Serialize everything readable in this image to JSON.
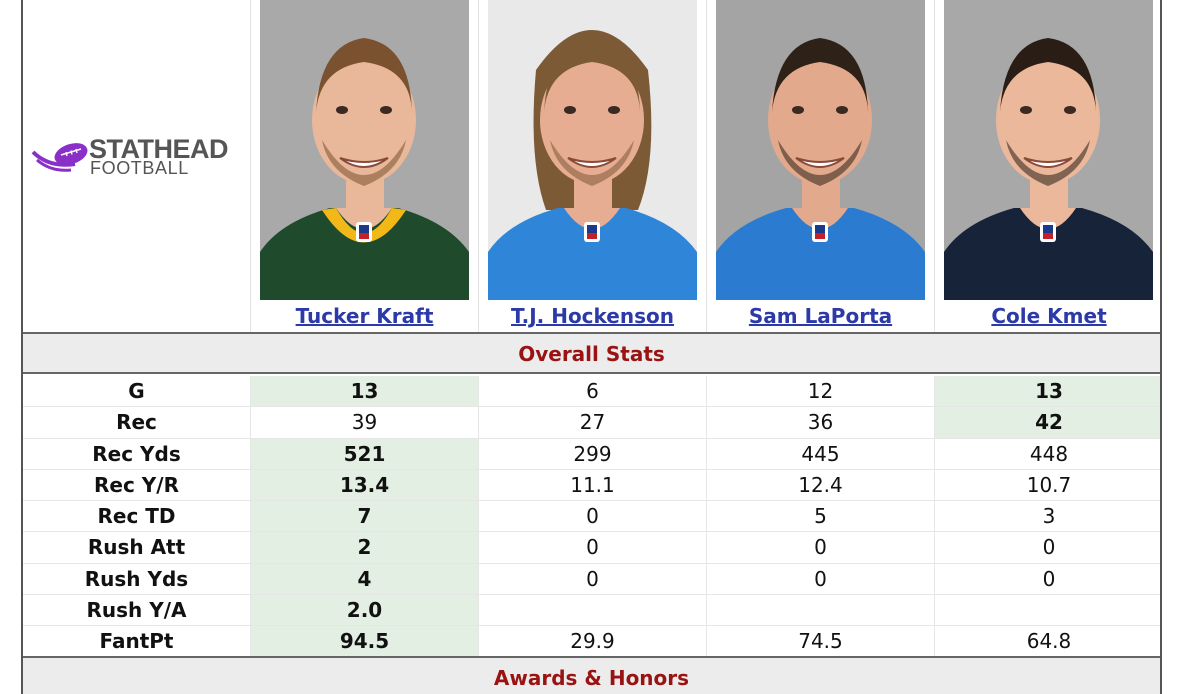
{
  "logo": {
    "line1": "STATHEAD",
    "line2": "FOOTBALL",
    "accent": "#8a2fc8"
  },
  "players": [
    {
      "name": "Tucker Kraft",
      "jersey": "green",
      "jersey_color": "#1f4a2c",
      "trim_color": "#f2b817",
      "hair": "#7a5230",
      "skin": "#e9b79a",
      "bg": "#a9a9a9"
    },
    {
      "name": "T.J. Hockenson",
      "jersey": "blue",
      "jersey_color": "#2f86d8",
      "trim_color": "#2f86d8",
      "hair": "#7d5a36",
      "skin": "#e6ad92",
      "bg": "#e9e9e9"
    },
    {
      "name": "Sam LaPorta",
      "jersey": "blue",
      "jersey_color": "#2b7cd0",
      "trim_color": "#2b7cd0",
      "hair": "#2d2118",
      "skin": "#e2a98c",
      "bg": "#a4a4a4"
    },
    {
      "name": "Cole Kmet",
      "jersey": "navy",
      "jersey_color": "#172338",
      "trim_color": "#172338",
      "hair": "#2a1d16",
      "skin": "#ecb89c",
      "bg": "#a8a8a8"
    }
  ],
  "sections": {
    "overall": "Overall Stats",
    "awards": "Awards & Honors"
  },
  "stats": [
    {
      "label": "G",
      "values": [
        "13",
        "6",
        "12",
        "13"
      ],
      "best": [
        0,
        3
      ]
    },
    {
      "label": "Rec",
      "values": [
        "39",
        "27",
        "36",
        "42"
      ],
      "best": [
        3
      ]
    },
    {
      "label": "Rec Yds",
      "values": [
        "521",
        "299",
        "445",
        "448"
      ],
      "best": [
        0
      ]
    },
    {
      "label": "Rec Y/R",
      "values": [
        "13.4",
        "11.1",
        "12.4",
        "10.7"
      ],
      "best": [
        0
      ]
    },
    {
      "label": "Rec TD",
      "values": [
        "7",
        "0",
        "5",
        "3"
      ],
      "best": [
        0
      ]
    },
    {
      "label": "Rush Att",
      "values": [
        "2",
        "0",
        "0",
        "0"
      ],
      "best": [
        0
      ]
    },
    {
      "label": "Rush Yds",
      "values": [
        "4",
        "0",
        "0",
        "0"
      ],
      "best": [
        0
      ]
    },
    {
      "label": "Rush Y/A",
      "values": [
        "2.0",
        "",
        "",
        ""
      ],
      "best": [
        0
      ]
    },
    {
      "label": "FantPt",
      "values": [
        "94.5",
        "29.9",
        "74.5",
        "64.8"
      ],
      "best": [
        0
      ]
    }
  ],
  "colors": {
    "best_bg": "#e3efe3",
    "section_text": "#9a1313",
    "link": "#2b3aa8"
  }
}
